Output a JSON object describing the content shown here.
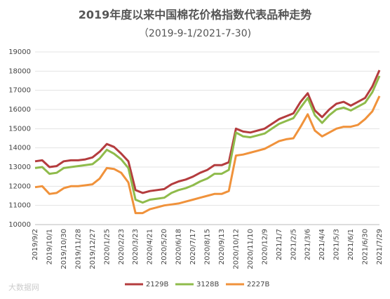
{
  "chart_data": {
    "type": "line",
    "title": "2019年度以来中国棉花价格指数代表品种走势",
    "subtitle": "（2019-9-1/2021-7-30)",
    "watermark": "大数据网",
    "categories": [
      "2019/9/2",
      null,
      "2019/10/1",
      null,
      "2019/10/30",
      null,
      "2019/11/28",
      null,
      "2019/12/27",
      null,
      "2020/1/25",
      null,
      "2020/2/23",
      null,
      "2020/3/23",
      null,
      "2020/4/21",
      null,
      "2020/5/20",
      null,
      "2020/6/18",
      null,
      "2020/7/17",
      null,
      "2020/8/15",
      null,
      "2020/9/13",
      null,
      "2020/10/12",
      null,
      "2020/11/10",
      null,
      "2020/12/9",
      null,
      "2021/1/7",
      null,
      "2021/2/5",
      null,
      "2021/3/6",
      null,
      "2021/4/4",
      null,
      "2021/5/3",
      null,
      "2021/6/1",
      null,
      "2021/6/30",
      null,
      "2021/7/29"
    ],
    "series": [
      {
        "name": "2129B",
        "color": "#b43c3e",
        "values": [
          13300,
          13350,
          13000,
          13050,
          13300,
          13350,
          13350,
          13400,
          13500,
          13800,
          14200,
          14050,
          13700,
          13300,
          11800,
          11650,
          11750,
          11800,
          11850,
          12100,
          12250,
          12350,
          12500,
          12700,
          12850,
          13100,
          13100,
          13250,
          15000,
          14850,
          14800,
          14900,
          15000,
          15250,
          15500,
          15650,
          15800,
          16400,
          16850,
          15950,
          15600,
          16000,
          16300,
          16400,
          16200,
          16400,
          16600,
          17200,
          18050
        ]
      },
      {
        "name": "3128B",
        "color": "#8fbb4b",
        "values": [
          12950,
          13000,
          12650,
          12700,
          12950,
          13000,
          13050,
          13100,
          13150,
          13450,
          13900,
          13700,
          13400,
          12950,
          11300,
          11150,
          11300,
          11350,
          11400,
          11650,
          11800,
          11900,
          12050,
          12250,
          12400,
          12650,
          12650,
          12850,
          14800,
          14600,
          14550,
          14650,
          14750,
          15000,
          15250,
          15400,
          15550,
          16100,
          16600,
          15700,
          15300,
          15700,
          16000,
          16100,
          15950,
          16150,
          16350,
          16900,
          17750
        ]
      },
      {
        "name": "2227B",
        "color": "#f0923b",
        "values": [
          11950,
          12000,
          11600,
          11650,
          11900,
          12000,
          12000,
          12050,
          12100,
          12400,
          12950,
          12900,
          12700,
          12200,
          10600,
          10600,
          10800,
          10900,
          11000,
          11050,
          11100,
          11200,
          11300,
          11400,
          11500,
          11600,
          11600,
          11750,
          13600,
          13650,
          13750,
          13850,
          13950,
          14150,
          14350,
          14450,
          14500,
          15100,
          15750,
          14900,
          14600,
          14800,
          15000,
          15100,
          15100,
          15200,
          15500,
          15900,
          16700
        ]
      }
    ],
    "ylim": [
      10000,
      19000
    ],
    "yticks": [
      10000,
      11000,
      12000,
      13000,
      14000,
      15000,
      16000,
      17000,
      18000,
      19000
    ],
    "grid": true
  }
}
